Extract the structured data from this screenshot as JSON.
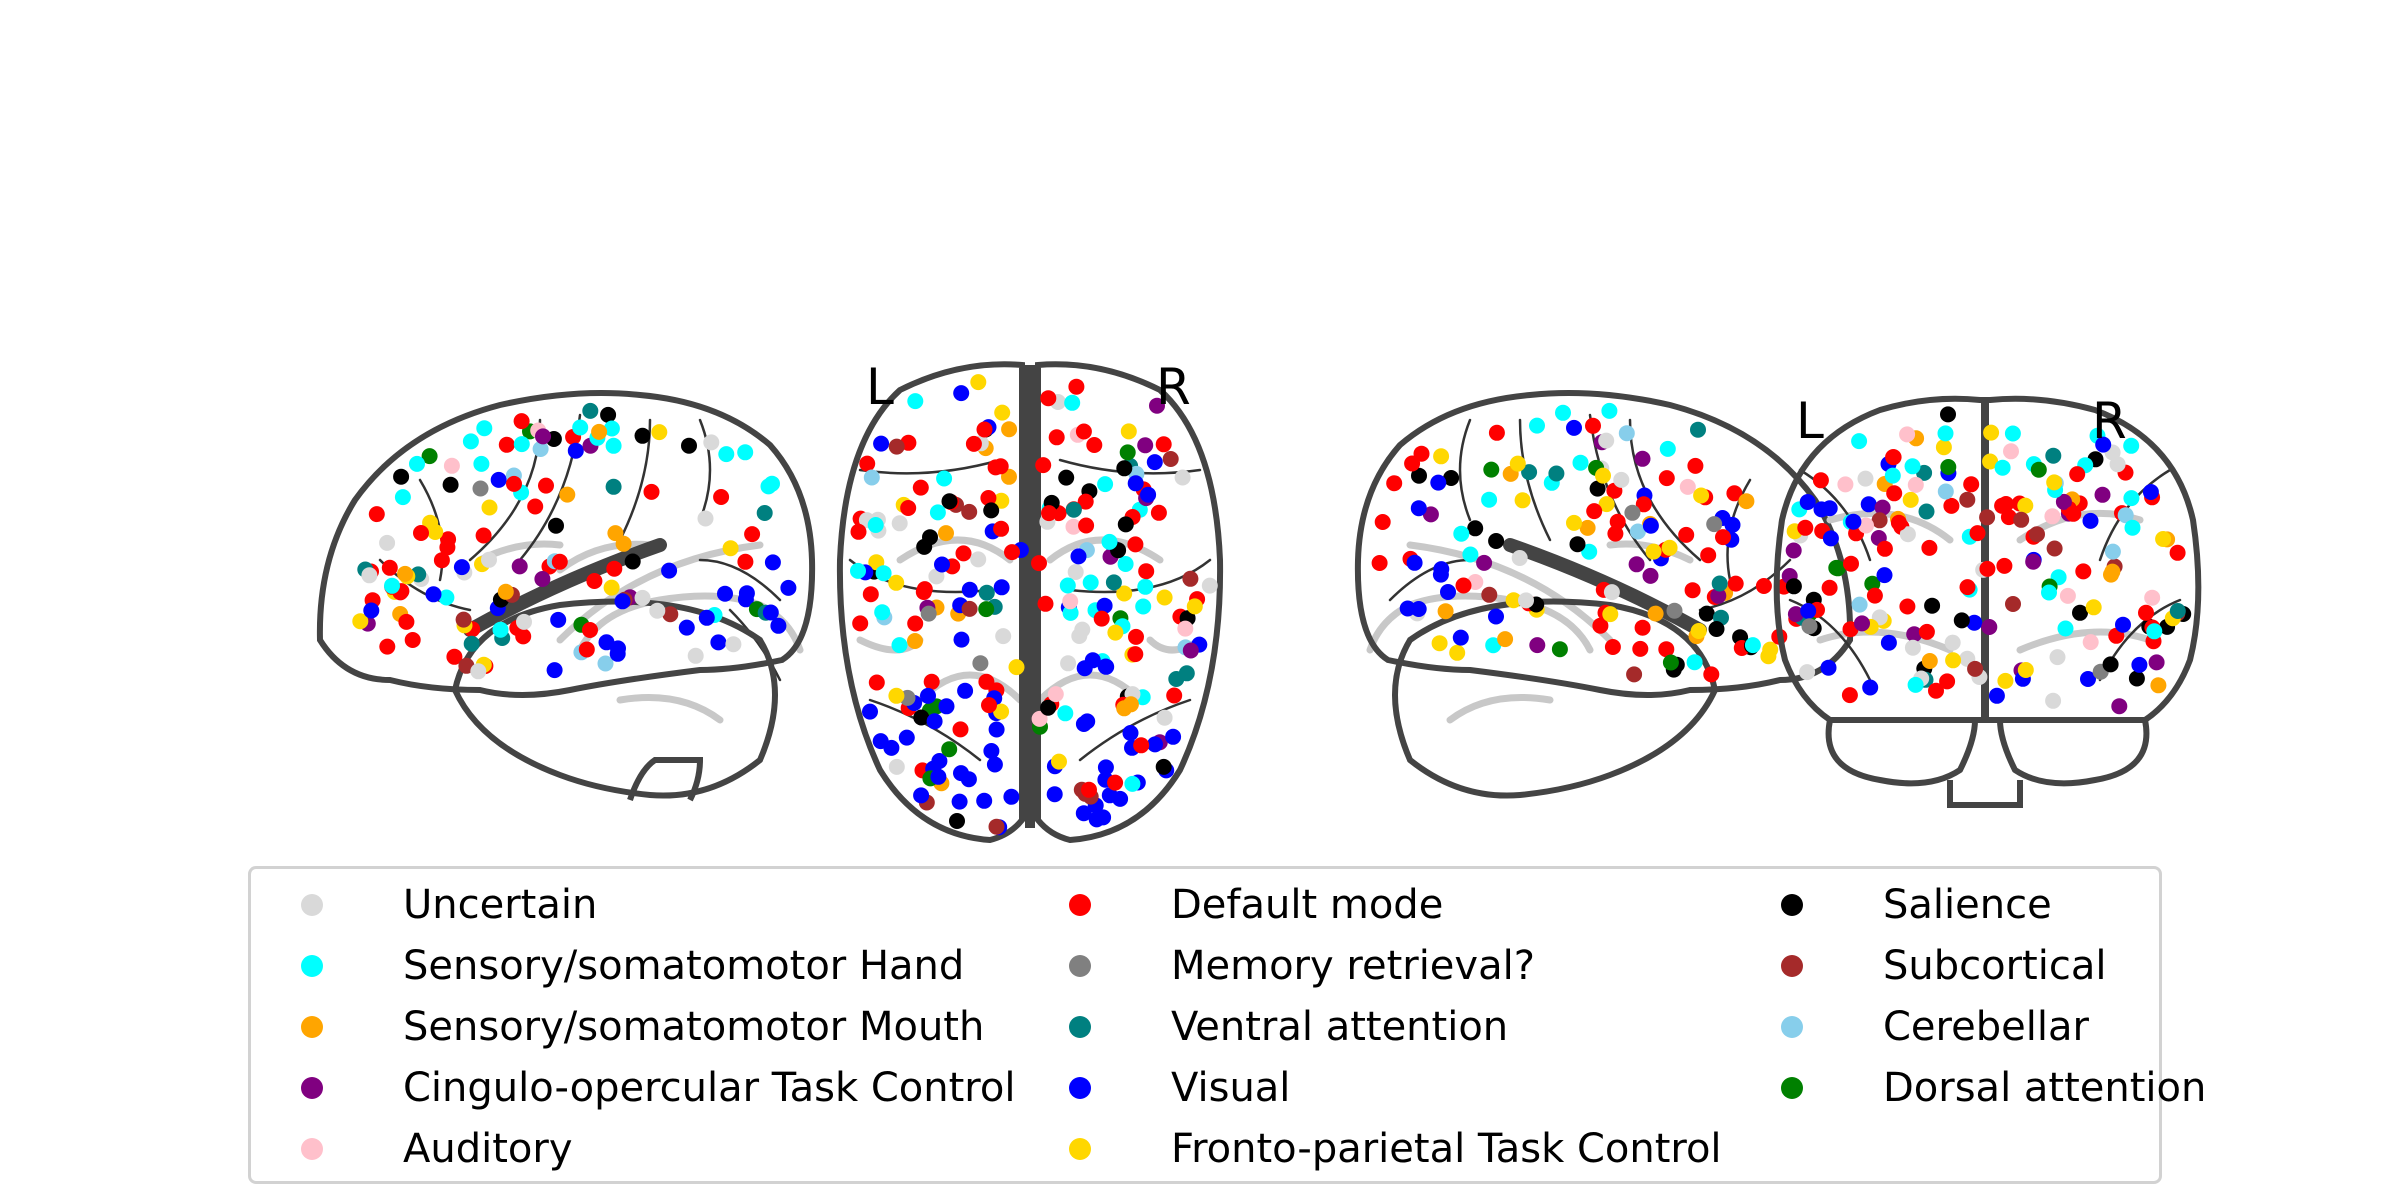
{
  "views": {
    "axial": {
      "left_label": "L",
      "right_label": "R"
    },
    "coronal": {
      "left_label": "L",
      "right_label": "R"
    }
  },
  "networks": [
    {
      "name": "Uncertain",
      "color": "#d9d9d9"
    },
    {
      "name": "Sensory/somatomotor Hand",
      "color": "#00ffff"
    },
    {
      "name": "Sensory/somatomotor Mouth",
      "color": "#ffa500"
    },
    {
      "name": "Cingulo-opercular Task Control",
      "color": "#800080"
    },
    {
      "name": "Auditory",
      "color": "#ffc0cb"
    },
    {
      "name": "Default mode",
      "color": "#ff0000"
    },
    {
      "name": "Memory retrieval?",
      "color": "#808080"
    },
    {
      "name": "Ventral attention",
      "color": "#008080"
    },
    {
      "name": "Visual",
      "color": "#0000ff"
    },
    {
      "name": "Fronto-parietal Task Control",
      "color": "#ffd700"
    },
    {
      "name": "Salience",
      "color": "#000000"
    },
    {
      "name": "Subcortical",
      "color": "#a52a2a"
    },
    {
      "name": "Cerebellar",
      "color": "#87ceeb"
    },
    {
      "name": "Dorsal attention",
      "color": "#008000"
    }
  ]
}
